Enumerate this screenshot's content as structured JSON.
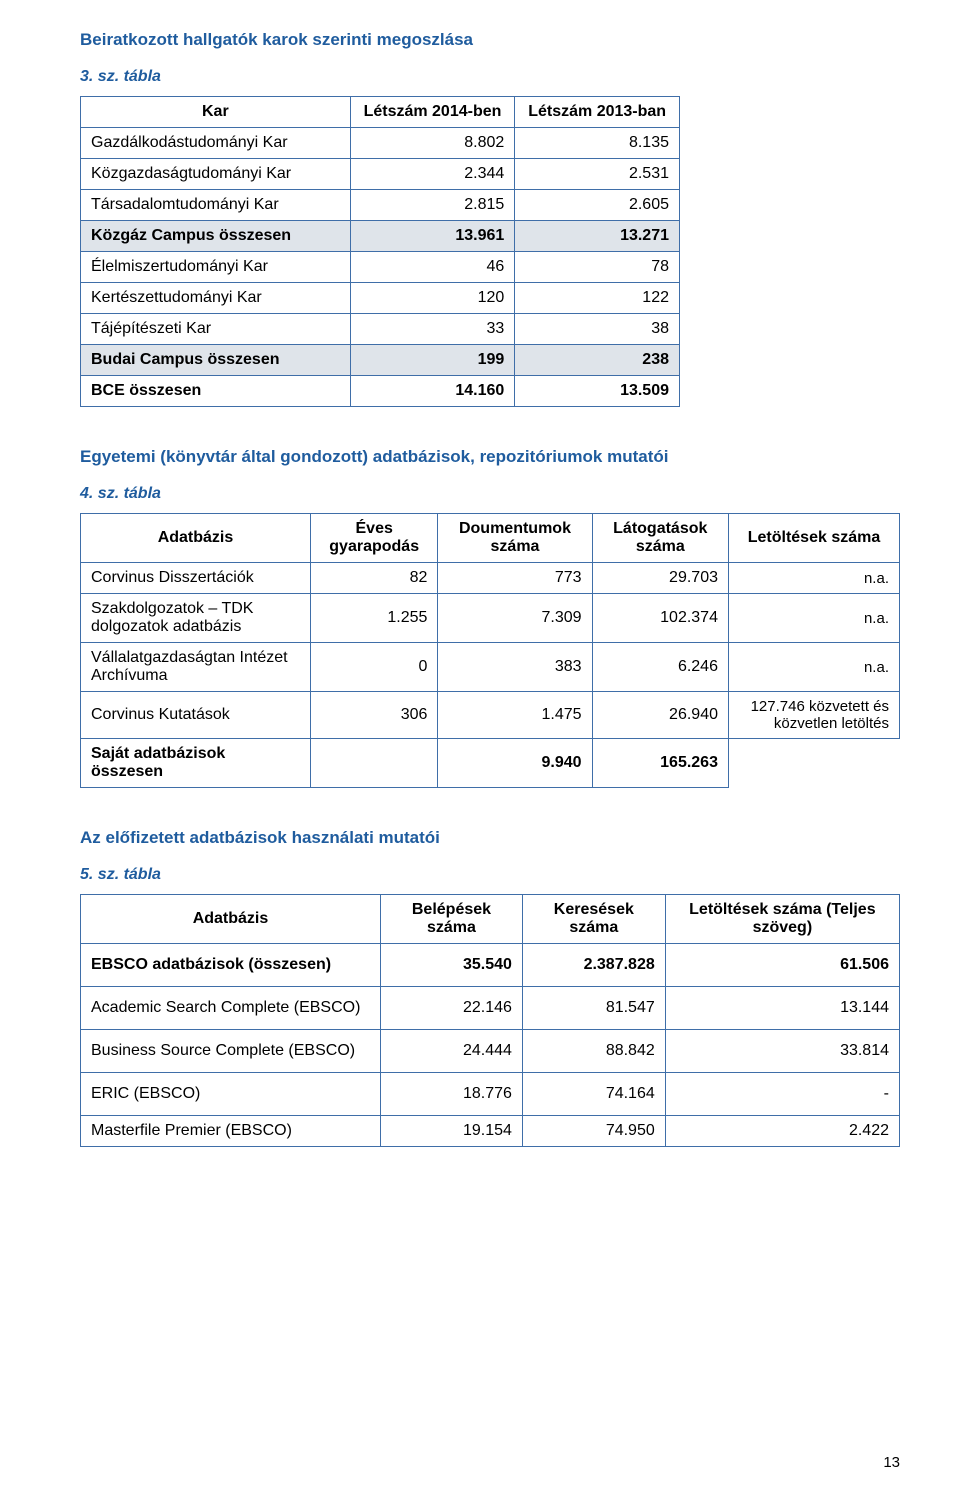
{
  "section1": {
    "title": "Beiratkozott hallgatók karok szerinti megoszlása",
    "caption": "3. sz. tábla",
    "headers": [
      "Kar",
      "Létszám 2014-ben",
      "Létszám 2013-ban"
    ],
    "rows": [
      {
        "c0": "Gazdálkodástudományi Kar",
        "c1": "8.802",
        "c2": "8.135"
      },
      {
        "c0": "Közgazdaságtudományi Kar",
        "c1": "2.344",
        "c2": "2.531"
      },
      {
        "c0": "Társadalomtudományi Kar",
        "c1": "2.815",
        "c2": "2.605"
      },
      {
        "c0": "Közgáz Campus összesen",
        "c1": "13.961",
        "c2": "13.271",
        "shaded": true
      },
      {
        "c0": "Élelmiszertudományi Kar",
        "c1": "46",
        "c2": "78"
      },
      {
        "c0": "Kertészettudományi Kar",
        "c1": "120",
        "c2": "122"
      },
      {
        "c0": "Tájépítészeti Kar",
        "c1": "33",
        "c2": "38"
      },
      {
        "c0": "Budai Campus összesen",
        "c1": "199",
        "c2": "238",
        "shaded": true
      },
      {
        "c0": "BCE összesen",
        "c1": "14.160",
        "c2": "13.509",
        "total": true
      }
    ]
  },
  "section2": {
    "title": "Egyetemi (könyvtár által gondozott) adatbázisok, repozitóriumok mutatói",
    "caption": "4. sz. tábla",
    "headers": [
      "Adatbázis",
      "Éves gyarapodás",
      "Doumentumok száma",
      "Látogatások száma",
      "Letöltések száma"
    ],
    "rows": [
      {
        "c0": "Corvinus Disszertációk",
        "c1": "82",
        "c2": "773",
        "c3": "29.703",
        "c4": "n.a."
      },
      {
        "c0": "Szakdolgozatok – TDK dolgozatok adatbázis",
        "c1": "1.255",
        "c2": "7.309",
        "c3": "102.374",
        "c4": "n.a."
      },
      {
        "c0": "Vállalatgazdaságtan Intézet Archívuma",
        "c1": "0",
        "c2": "383",
        "c3": "6.246",
        "c4": "n.a."
      },
      {
        "c0": "Corvinus Kutatások",
        "c1": "306",
        "c2": "1.475",
        "c3": "26.940",
        "c4": "127.746 közvetett és közvetlen letöltés"
      },
      {
        "c0": "Saját adatbázisok összesen",
        "c1": "",
        "c2": "9.940",
        "c3": "165.263",
        "c4": "",
        "total": true
      }
    ]
  },
  "section3": {
    "title": "Az előfizetett adatbázisok használati mutatói",
    "caption": "5. sz. tábla",
    "headers": [
      "Adatbázis",
      "Belépések száma",
      "Keresések száma",
      "Letöltések száma (Teljes szöveg)"
    ],
    "rows": [
      {
        "c0": "EBSCO adatbázisok (összesen)",
        "c1": "35.540",
        "c2": "2.387.828",
        "c3": "61.506",
        "bold": true,
        "gap": true
      },
      {
        "c0": "Academic Search Complete (EBSCO)",
        "c1": "22.146",
        "c2": "81.547",
        "c3": "13.144",
        "gap": true
      },
      {
        "c0": "Business Source Complete (EBSCO)",
        "c1": "24.444",
        "c2": "88.842",
        "c3": "33.814",
        "gap": true
      },
      {
        "c0": "ERIC (EBSCO)",
        "c1": "18.776",
        "c2": "74.164",
        "c3": "-",
        "gap": true
      },
      {
        "c0": "Masterfile Premier (EBSCO)",
        "c1": "19.154",
        "c2": "74.950",
        "c3": "2.422"
      }
    ]
  },
  "pagenum": "13"
}
